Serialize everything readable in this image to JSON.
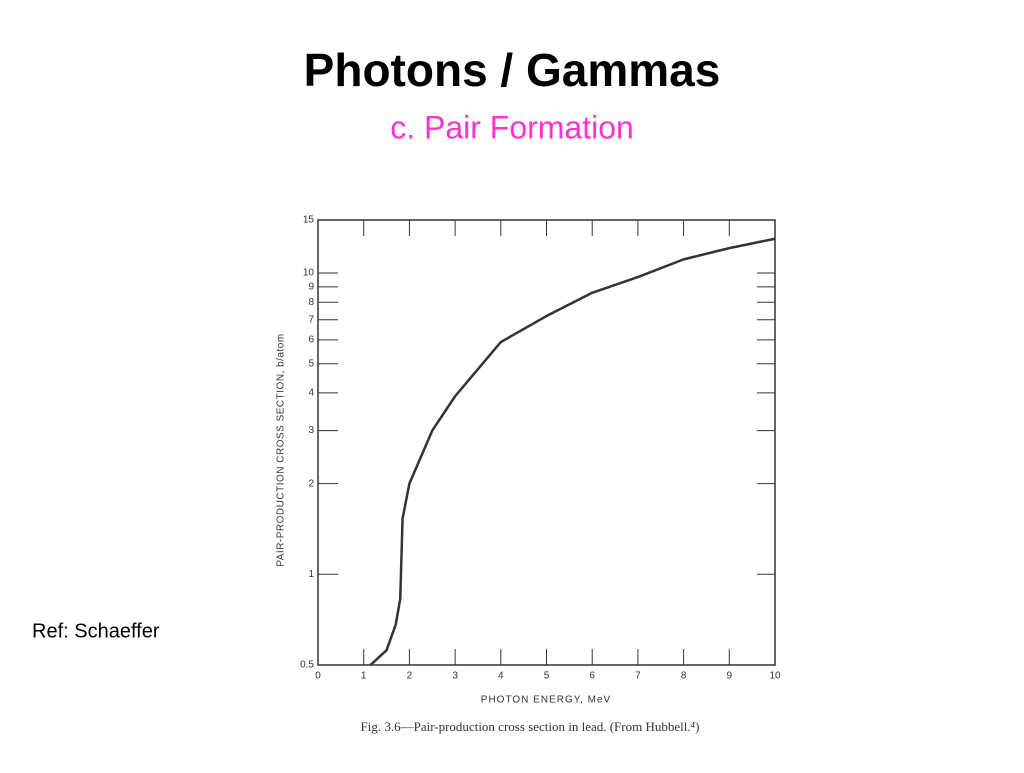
{
  "slide": {
    "title": "Photons / Gammas",
    "subtitle": "c. Pair Formation",
    "ref": "Ref: Schaeffer"
  },
  "chart_data": {
    "type": "line",
    "x_label": "PHOTON ENERGY, MeV",
    "y_label": "PAIR-PRODUCTION CROSS SECTION, b/atom",
    "caption": "Fig. 3.6—Pair-production cross section in lead. (From Hubbell.⁴)",
    "x": [
      1.15,
      1.5,
      1.7,
      1.8,
      1.85,
      2,
      2.5,
      3,
      4,
      5,
      6,
      7,
      8,
      9,
      10
    ],
    "values": [
      0.5,
      0.56,
      0.68,
      0.83,
      1.53,
      2,
      3,
      3.9,
      5.9,
      7.2,
      8.6,
      9.7,
      11.1,
      12.1,
      13.0
    ],
    "color": "#333333",
    "xlim": [
      0,
      10
    ],
    "xticks": [
      0,
      1,
      2,
      3,
      4,
      5,
      6,
      7,
      8,
      9,
      10
    ],
    "ylim": [
      0.5,
      15
    ],
    "yticks": [
      0.5,
      1,
      2,
      3,
      4,
      5,
      6,
      7,
      8,
      9,
      10,
      15
    ],
    "log_y": true
  }
}
